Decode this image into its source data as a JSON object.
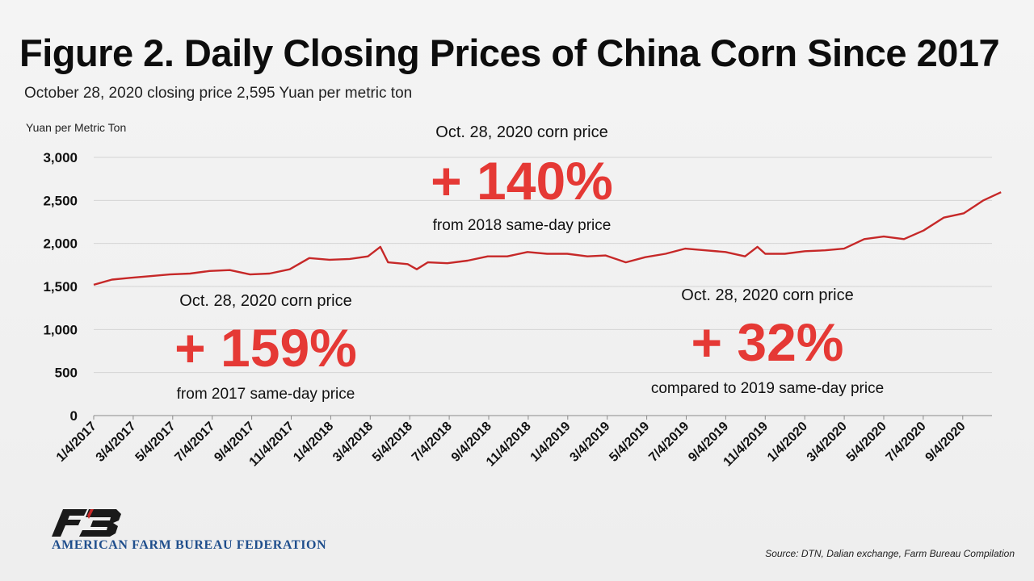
{
  "title": "Figure 2. Daily Closing Prices of China Corn Since 2017",
  "subtitle": "October 28, 2020 closing price 2,595 Yuan per metric ton",
  "source": "Source: DTN, Dalian exchange, Farm Bureau Compilation",
  "organization": "AMERICAN FARM BUREAU FEDERATION",
  "colors": {
    "line": "#c62828",
    "highlight": "#e53935",
    "brand": "#1f4e8c"
  },
  "annotations": [
    {
      "heading": "Oct. 28, 2020 corn price",
      "value": "+ 140%",
      "caption": "from 2018 same-day price"
    },
    {
      "heading": "Oct. 28, 2020 corn price",
      "value": "+ 159%",
      "caption": "from 2017 same-day price"
    },
    {
      "heading": "Oct. 28, 2020 corn price",
      "value": "+ 32%",
      "caption": "compared to 2019 same-day price"
    }
  ],
  "chart_data": {
    "type": "line",
    "ylabel": "Yuan per Metric Ton",
    "xlabel": "",
    "ylim": [
      0,
      3000
    ],
    "yticks": [
      "0",
      "500",
      "1,000",
      "1,500",
      "2,000",
      "2,500",
      "3,000"
    ],
    "grid": true,
    "legend": "none",
    "x_tick_labels": [
      "1/4/2017",
      "3/4/2017",
      "5/4/2017",
      "7/4/2017",
      "9/4/2017",
      "11/4/2017",
      "1/4/2018",
      "3/4/2018",
      "5/4/2018",
      "7/4/2018",
      "9/4/2018",
      "11/4/2018",
      "1/4/2019",
      "3/4/2019",
      "5/4/2019",
      "7/4/2019",
      "9/4/2019",
      "11/4/2019",
      "1/4/2020",
      "3/4/2020",
      "5/4/2020",
      "7/4/2020",
      "9/4/2020"
    ],
    "series": [
      {
        "x": [
          "2017-01-04",
          "2017-02-01",
          "2017-03-01",
          "2017-04-01",
          "2017-05-01",
          "2017-06-01",
          "2017-07-01",
          "2017-08-01",
          "2017-09-01",
          "2017-10-01",
          "2017-11-01",
          "2017-12-01",
          "2018-01-01",
          "2018-02-01",
          "2018-03-01",
          "2018-03-20",
          "2018-04-01",
          "2018-05-01",
          "2018-05-15",
          "2018-06-01",
          "2018-07-01",
          "2018-08-01",
          "2018-09-01",
          "2018-10-01",
          "2018-11-01",
          "2018-12-01",
          "2019-01-01",
          "2019-02-01",
          "2019-03-01",
          "2019-04-01",
          "2019-05-01",
          "2019-06-01",
          "2019-07-01",
          "2019-08-01",
          "2019-09-01",
          "2019-10-01",
          "2019-10-20",
          "2019-11-01",
          "2019-12-01",
          "2020-01-01",
          "2020-02-01",
          "2020-03-01",
          "2020-04-01",
          "2020-05-01",
          "2020-06-01",
          "2020-07-01",
          "2020-08-01",
          "2020-09-01",
          "2020-10-01",
          "2020-10-28"
        ],
        "values": [
          1520,
          1580,
          1600,
          1620,
          1640,
          1650,
          1680,
          1690,
          1640,
          1650,
          1700,
          1830,
          1810,
          1820,
          1850,
          1960,
          1780,
          1760,
          1700,
          1780,
          1770,
          1800,
          1850,
          1850,
          1900,
          1880,
          1880,
          1850,
          1860,
          1780,
          1840,
          1880,
          1940,
          1920,
          1900,
          1850,
          1960,
          1880,
          1880,
          1910,
          1920,
          1940,
          2050,
          2080,
          2050,
          2150,
          2300,
          2350,
          2500,
          2595
        ]
      }
    ]
  }
}
